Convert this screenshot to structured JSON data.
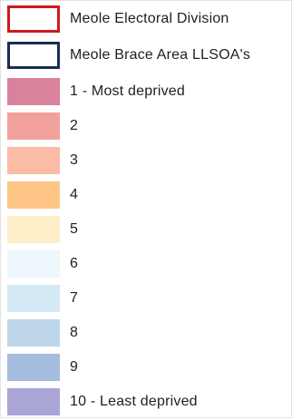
{
  "legend": {
    "items": [
      {
        "label": "Meole Electoral Division",
        "style": "outline",
        "color": "#cc1a1f"
      },
      {
        "label": "Meole Brace Area LLSOA's",
        "style": "outline",
        "color": "#1a2d55"
      },
      {
        "label": "1 - Most deprived",
        "style": "fill",
        "color": "#d9829c"
      },
      {
        "label": "2",
        "style": "fill",
        "color": "#f2a19f"
      },
      {
        "label": "3",
        "style": "fill",
        "color": "#fbbba4"
      },
      {
        "label": "4",
        "style": "fill",
        "color": "#fdc686"
      },
      {
        "label": "5",
        "style": "fill",
        "color": "#fdeec8"
      },
      {
        "label": "6",
        "style": "fill",
        "color": "#eef7fb"
      },
      {
        "label": "7",
        "style": "fill",
        "color": "#d3e9f5"
      },
      {
        "label": "8",
        "style": "fill",
        "color": "#bdd6ea"
      },
      {
        "label": "9",
        "style": "fill",
        "color": "#a5bddf"
      },
      {
        "label": "10 - Least deprived",
        "style": "fill",
        "color": "#a9a5d6"
      }
    ]
  }
}
